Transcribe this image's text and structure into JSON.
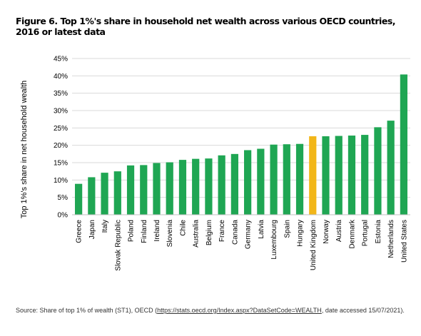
{
  "title": "Figure 6. Top 1%'s share in household net wealth across various OECD countries, 2016 or latest data",
  "source": {
    "prefix": "Source: Share of top 1% of wealth (ST1), OECD (",
    "link": "https://stats.oecd.org/Index.aspx?DataSetCode=WEALTH",
    "suffix": ", date accessed 15/07/2021)."
  },
  "colors": {
    "default": "#1fa653",
    "highlight": "#f2b619",
    "grid": "#d9d9d9"
  },
  "chart_data": {
    "type": "bar",
    "title": "Figure 6. Top 1%'s share in household net wealth across various OECD countries, 2016 or latest data",
    "xlabel": "",
    "ylabel": "Top 1%'s share in net household wealth",
    "ylim": [
      0,
      45
    ],
    "yticks": [
      "0%",
      "5%",
      "10%",
      "15%",
      "20%",
      "25%",
      "30%",
      "35%",
      "40%",
      "45%"
    ],
    "grid": true,
    "categories": [
      "Greece",
      "Japan",
      "Italy",
      "Slovak Republic",
      "Poland",
      "Finland",
      "Ireland",
      "Slovenia",
      "Chile",
      "Australia",
      "Belgium",
      "France",
      "Canada",
      "Germany",
      "Latvia",
      "Luxembourg",
      "Spain",
      "Hungary",
      "United Kingdom",
      "Norway",
      "Austria",
      "Denmark",
      "Portugal",
      "Estonia",
      "Netherlands",
      "United States"
    ],
    "values": [
      8.9,
      10.8,
      12.1,
      12.5,
      14.2,
      14.3,
      14.9,
      15.1,
      15.8,
      16.1,
      16.2,
      17.1,
      17.5,
      18.6,
      19.0,
      20.2,
      20.3,
      20.4,
      22.6,
      22.6,
      22.7,
      22.8,
      23.0,
      25.2,
      27.1,
      40.4
    ],
    "highlight": "United Kingdom"
  }
}
